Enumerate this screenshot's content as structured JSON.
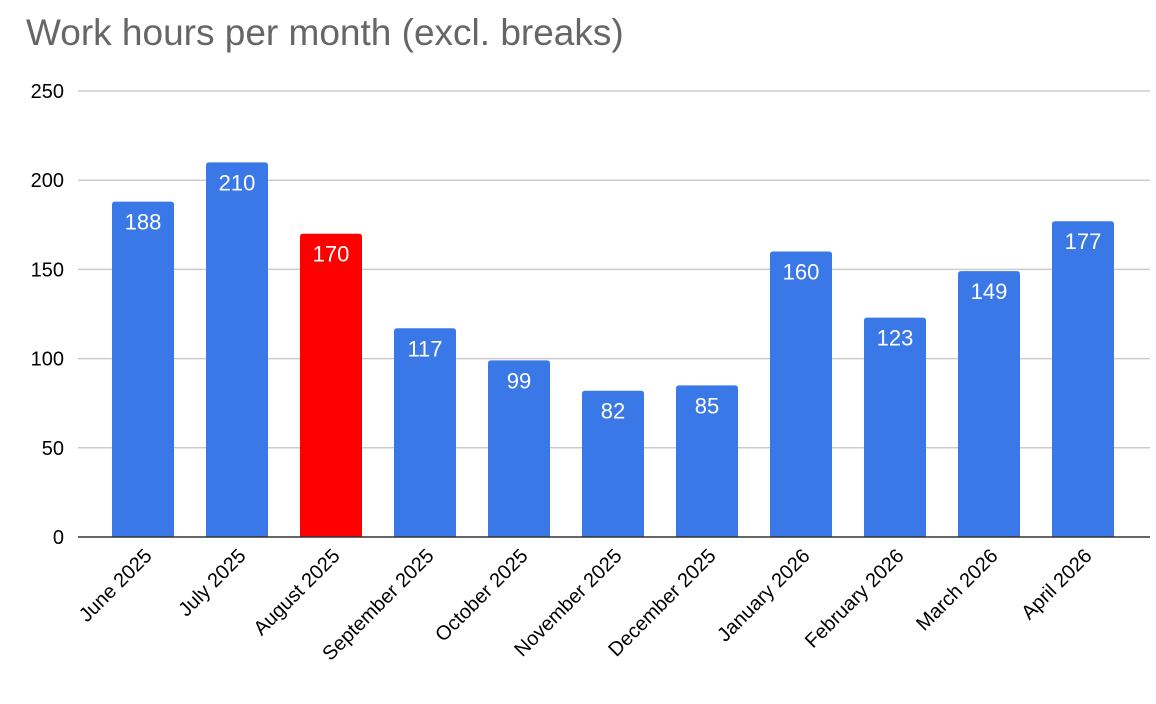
{
  "chart_data": {
    "type": "bar",
    "title": "Work hours per month (excl. breaks)",
    "xlabel": "",
    "ylabel": "",
    "categories": [
      "June 2025",
      "July 2025",
      "August 2025",
      "September 2025",
      "October 2025",
      "November 2025",
      "December 2025",
      "January 2026",
      "February 2026",
      "March 2026",
      "April 2026"
    ],
    "values": [
      188,
      210,
      170,
      117,
      99,
      82,
      85,
      160,
      123,
      149,
      177
    ],
    "data_labels": [
      "188",
      "210",
      "170",
      "117",
      "99",
      "82",
      "85",
      "160",
      "123",
      "149",
      "177"
    ],
    "ylim": [
      0,
      250
    ],
    "y_ticks": [
      0,
      50,
      100,
      150,
      200,
      250
    ],
    "y_tick_labels": [
      "0",
      "50",
      "100",
      "150",
      "200",
      "250"
    ],
    "grid": true,
    "legend": "none",
    "colors": {
      "default_bar": "#3b78e7",
      "highlight_bar": "#ff0000",
      "gridline": "#cccccc",
      "axis": "#333333",
      "title": "#666666",
      "data_label": "#ffffff"
    },
    "highlighted_category": "August 2025"
  }
}
